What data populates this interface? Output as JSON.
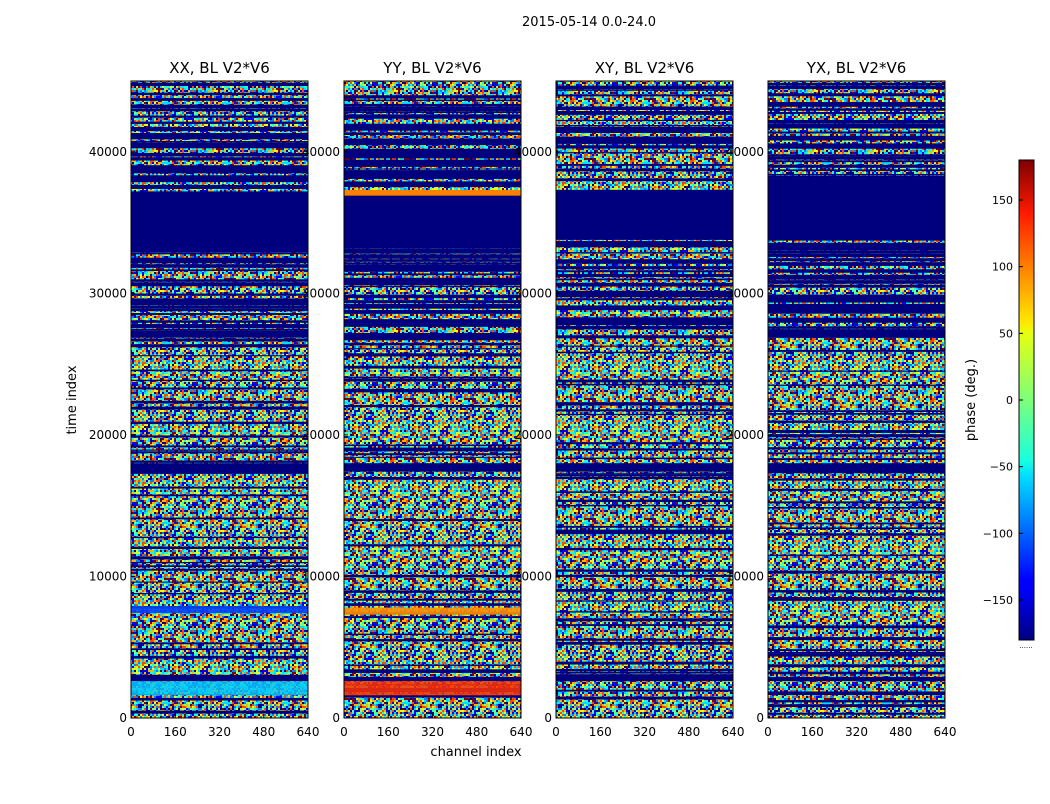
{
  "figure": {
    "suptitle": "2015-05-14 0.0-24.0"
  },
  "chart_data": {
    "type": "heatmap",
    "suptitle": "2015-05-14 0.0-24.0",
    "xlabel": "channel index",
    "ylabel": "time index",
    "xlim": [
      0,
      640
    ],
    "ylim": [
      0,
      45000
    ],
    "x_ticks": [
      "0",
      "160",
      "320",
      "480",
      "640"
    ],
    "y_ticks": [
      "0",
      "10000",
      "20000",
      "30000",
      "40000"
    ],
    "panels": [
      {
        "title": "XX, BL V2*V6",
        "pol": "XX"
      },
      {
        "title": "YY, BL V2*V6",
        "pol": "YY"
      },
      {
        "title": "XY, BL V2*V6",
        "pol": "XY"
      },
      {
        "title": "YX, BL V2*V6",
        "pol": "YX"
      }
    ],
    "colorbar": {
      "label": "phase (deg.)",
      "range": [
        -180,
        180
      ],
      "ticks": [
        "150",
        "100",
        "50",
        "0",
        "−50",
        "−100",
        "−150"
      ],
      "colormap": "jet"
    },
    "features": {
      "dense_blue_bands": [
        [
          33800,
          37200
        ],
        [
          17400,
          18000
        ],
        [
          2600,
          2900
        ]
      ],
      "xx_cyan_band": [
        1600,
        2600
      ],
      "xx_blue_band": [
        7400,
        7900
      ],
      "yy_orange_band": [
        7300,
        7800
      ],
      "yy_red_band": [
        1600,
        2600
      ],
      "yy_orange_line": [
        36900,
        37300
      ]
    }
  }
}
